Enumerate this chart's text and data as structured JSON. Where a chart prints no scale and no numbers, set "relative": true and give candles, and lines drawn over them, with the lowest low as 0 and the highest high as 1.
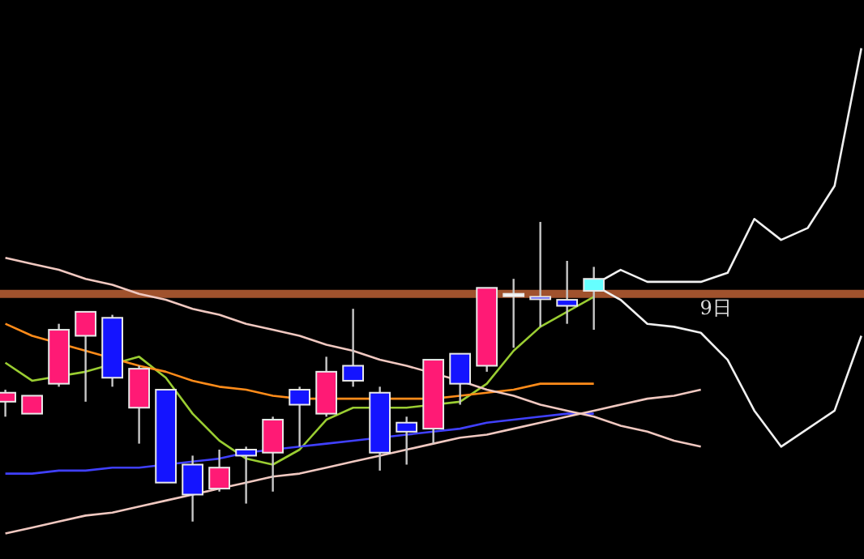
{
  "chart_data": {
    "type": "candlestick",
    "relative": true,
    "categories": [
      null,
      null,
      null,
      null,
      null,
      null,
      null,
      null,
      null,
      null,
      null,
      null,
      null,
      null,
      null,
      null,
      null,
      null,
      null,
      null,
      null,
      null,
      null,
      null,
      null,
      null,
      null,
      null,
      null,
      null,
      null,
      null,
      null
    ],
    "ohlc": [
      [
        0.4,
        0.44,
        0.35,
        0.43
      ],
      [
        0.36,
        0.42,
        0.36,
        0.42
      ],
      [
        0.46,
        0.66,
        0.45,
        0.64
      ],
      [
        0.62,
        0.7,
        0.4,
        0.7
      ],
      [
        0.68,
        0.69,
        0.45,
        0.48
      ],
      [
        0.38,
        0.52,
        0.26,
        0.51
      ],
      [
        0.44,
        0.44,
        0.13,
        0.13
      ],
      [
        0.19,
        0.22,
        0,
        0.09
      ],
      [
        0.11,
        0.24,
        0.1,
        0.18
      ],
      [
        0.24,
        0.25,
        0.06,
        0.22
      ],
      [
        0.23,
        0.35,
        0.1,
        0.34
      ],
      [
        0.44,
        0.45,
        0.25,
        0.39
      ],
      [
        0.36,
        0.55,
        0.35,
        0.5
      ],
      [
        0.52,
        0.71,
        0.45,
        0.47
      ],
      [
        0.43,
        0.45,
        0.17,
        0.23
      ],
      [
        0.33,
        0.35,
        0.19,
        0.3
      ],
      [
        0.31,
        0.54,
        0.26,
        0.54
      ],
      [
        0.56,
        0.56,
        0.39,
        0.46
      ],
      [
        0.52,
        0.78,
        0.5,
        0.78
      ],
      [
        0.76,
        0.81,
        0.58,
        0.76
      ],
      [
        0.75,
        1.0,
        0.65,
        0.75
      ],
      [
        0.74,
        0.87,
        0.66,
        0.72
      ],
      [
        0.77,
        0.85,
        0.64,
        0.81
      ],
      null,
      null,
      null,
      null,
      null,
      null,
      null,
      null,
      null,
      null
    ],
    "colors": [
      "#ff1a75",
      "#ff1a75",
      "#ff1a75",
      "#ff1a75",
      "#1414ff",
      "#ff1a75",
      "#1414ff",
      "#1414ff",
      "#ff1a75",
      "#1414ff",
      "#ff1a75",
      "#1414ff",
      "#ff1a75",
      "#1414ff",
      "#1414ff",
      "#1414ff",
      "#ff1a75",
      "#1414ff",
      "#ff1a75",
      "#ffffff",
      "#1414ff",
      "#1414ff",
      "#66ffff",
      null,
      null,
      null,
      null,
      null,
      null,
      null,
      null,
      null,
      null
    ],
    "series": [
      {
        "type": "line",
        "color": "#9acd32",
        "values": [
          0.53,
          0.47,
          null,
          0.5,
          null,
          0.55,
          0.48,
          0.36,
          0.27,
          0.21,
          0.19,
          0.24,
          0.34,
          0.38,
          null,
          0.38,
          null,
          0.4,
          0.46,
          0.57,
          0.65,
          0.7,
          0.75,
          null,
          null,
          null,
          null,
          null,
          null,
          null,
          null,
          null,
          null
        ]
      },
      {
        "type": "line",
        "color": "#ff8c1a",
        "values": [
          0.66,
          0.62,
          null,
          0.57,
          null,
          0.52,
          0.5,
          0.47,
          0.45,
          0.44,
          0.42,
          0.41,
          null,
          0.41,
          null,
          0.41,
          0.41,
          0.42,
          0.43,
          0.44,
          0.46,
          0.46,
          0.46,
          null,
          null,
          null,
          null,
          null,
          null,
          null,
          null,
          null,
          null
        ]
      },
      {
        "type": "line",
        "color": "#4040ff",
        "values": [
          0.16,
          0.16,
          0.17,
          0.17,
          0.18,
          0.18,
          null,
          0.2,
          0.21,
          0.23,
          null,
          0.25,
          0.26,
          0.27,
          null,
          0.29,
          0.3,
          0.31,
          0.33,
          0.34,
          0.35,
          0.36,
          0.36,
          null,
          null,
          null,
          null,
          null,
          null,
          null,
          null,
          null,
          null
        ]
      },
      {
        "type": "line",
        "color": "#f0c8c0",
        "values": [
          0.88,
          0.86,
          0.84,
          0.81,
          0.79,
          0.76,
          0.74,
          0.71,
          0.69,
          0.66,
          0.64,
          0.62,
          0.59,
          0.57,
          0.54,
          0.52,
          null,
          0.47,
          0.44,
          0.42,
          0.39,
          0.37,
          0.35,
          0.32,
          0.3,
          0.27,
          0.25,
          null,
          null,
          null,
          null,
          null,
          null
        ]
      },
      {
        "type": "line",
        "color": "#f0c8c0",
        "values": [
          -0.04,
          -0.02,
          0.0,
          0.02,
          0.03,
          0.05,
          0.07,
          0.09,
          0.11,
          0.13,
          0.15,
          0.16,
          0.18,
          0.2,
          0.22,
          0.24,
          0.26,
          0.28,
          0.29,
          0.31,
          0.33,
          0.35,
          0.37,
          0.39,
          0.41,
          0.42,
          0.44,
          null,
          null,
          null,
          null,
          null,
          null
        ]
      },
      {
        "type": "line",
        "color": "#f0f0f0",
        "values": [
          null,
          null,
          null,
          null,
          null,
          null,
          null,
          null,
          null,
          null,
          null,
          null,
          null,
          null,
          null,
          null,
          null,
          null,
          null,
          null,
          null,
          null,
          0.79,
          0.84,
          0.8,
          0.8,
          0.8,
          0.83,
          1.01,
          0.94,
          0.98,
          1.12,
          1.58
        ]
      },
      {
        "type": "line",
        "color": "#f0f0f0",
        "values": [
          null,
          null,
          null,
          null,
          null,
          null,
          null,
          null,
          null,
          null,
          null,
          null,
          null,
          null,
          null,
          null,
          null,
          null,
          null,
          null,
          null,
          null,
          0.79,
          0.74,
          0.66,
          0.65,
          0.63,
          0.54,
          0.37,
          0.25,
          0.31,
          0.37,
          0.62
        ]
      }
    ],
    "ref_lines": [
      {
        "axis": "y",
        "value": 0.76,
        "color": "#a0522d"
      }
    ],
    "annotations": [
      "9日"
    ]
  }
}
